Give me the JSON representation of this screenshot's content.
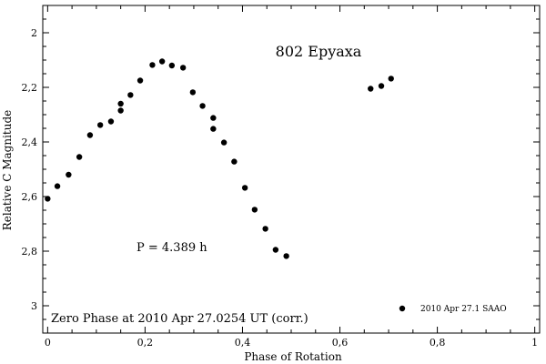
{
  "chart_data": {
    "type": "scatter",
    "title": "802 Epyaxa",
    "xlabel": "Phase of Rotation",
    "ylabel": "Relative C Magnitude",
    "xlim": [
      -0.01,
      1.01
    ],
    "ylim": [
      3.1,
      1.9
    ],
    "y_inverted": true,
    "grid": false,
    "x_ticks": [
      0,
      0.2,
      0.4,
      0.6,
      0.8,
      1
    ],
    "x_tick_labels": [
      "0",
      "0,2",
      "0,4",
      "0,6",
      "0,8",
      "1"
    ],
    "y_ticks": [
      2,
      2.2,
      2.4,
      2.6,
      2.8,
      3
    ],
    "y_tick_labels": [
      "2",
      "2,2",
      "2,4",
      "2,6",
      "2,8",
      "3"
    ],
    "annotations": {
      "period": "P = 4.389 h",
      "zero_phase": "Zero Phase at 2010 Apr 27.0254 UT (corr.)"
    },
    "legend_position": "bottom-right",
    "series": [
      {
        "name": "2010 Apr 27.1 SAAO",
        "x": [
          0.0,
          0.02,
          0.043,
          0.065,
          0.087,
          0.108,
          0.13,
          0.15,
          0.15,
          0.17,
          0.19,
          0.215,
          0.235,
          0.255,
          0.278,
          0.298,
          0.318,
          0.34,
          0.34,
          0.362,
          0.383,
          0.405,
          0.425,
          0.447,
          0.468,
          0.49,
          0.663,
          0.685,
          0.705
        ],
        "y": [
          2.608,
          2.562,
          2.52,
          2.455,
          2.375,
          2.338,
          2.325,
          2.285,
          2.26,
          2.228,
          2.175,
          2.118,
          2.105,
          2.12,
          2.128,
          2.218,
          2.268,
          2.312,
          2.352,
          2.402,
          2.472,
          2.568,
          2.648,
          2.718,
          2.795,
          2.818,
          2.205,
          2.195,
          2.168
        ]
      }
    ]
  }
}
